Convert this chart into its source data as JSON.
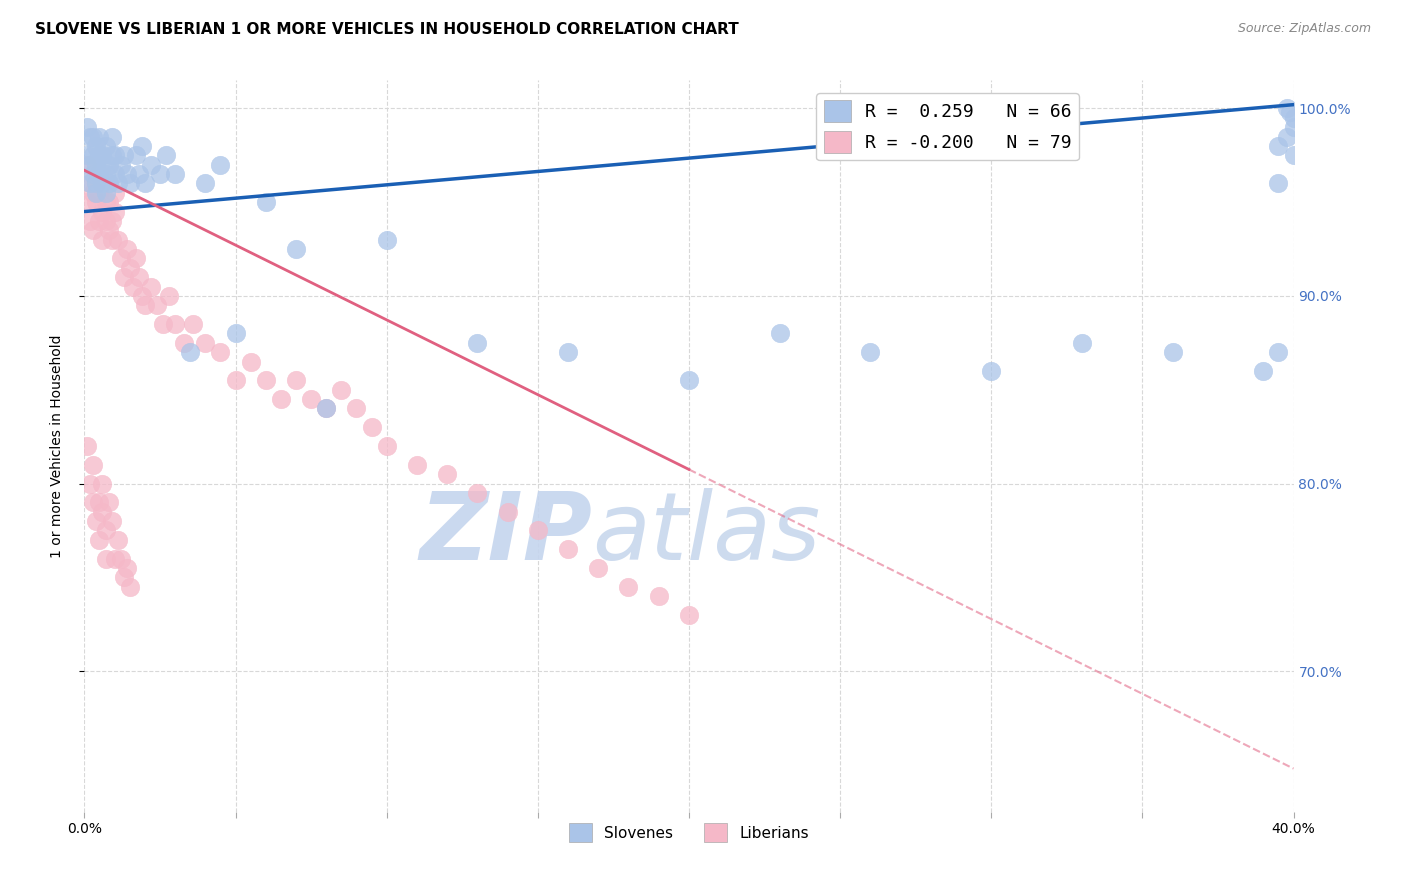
{
  "title": "SLOVENE VS LIBERIAN 1 OR MORE VEHICLES IN HOUSEHOLD CORRELATION CHART",
  "source": "Source: ZipAtlas.com",
  "ylabel": "1 or more Vehicles in Household",
  "xlabel": "",
  "xlim": [
    0.0,
    0.4
  ],
  "ylim": [
    0.625,
    1.015
  ],
  "xticks": [
    0.0,
    0.05,
    0.1,
    0.15,
    0.2,
    0.25,
    0.3,
    0.35,
    0.4
  ],
  "xticklabels": [
    "0.0%",
    "",
    "",
    "",
    "",
    "",
    "",
    "",
    "40.0%"
  ],
  "ytick_positions": [
    0.7,
    0.8,
    0.9,
    1.0
  ],
  "ytick_labels_right": [
    "70.0%",
    "80.0%",
    "90.0%",
    "100.0%"
  ],
  "slovene_color": "#aac4e8",
  "liberian_color": "#f5b8c8",
  "trend_blue": "#1a5fb4",
  "trend_pink": "#e06080",
  "grid_color": "#d8d8d8",
  "watermark_color": "#d0dff5",
  "slovene_x": [
    0.001,
    0.001,
    0.002,
    0.002,
    0.002,
    0.003,
    0.003,
    0.003,
    0.004,
    0.004,
    0.004,
    0.004,
    0.005,
    0.005,
    0.005,
    0.006,
    0.006,
    0.006,
    0.007,
    0.007,
    0.007,
    0.008,
    0.008,
    0.009,
    0.009,
    0.01,
    0.01,
    0.011,
    0.012,
    0.013,
    0.014,
    0.015,
    0.017,
    0.018,
    0.019,
    0.02,
    0.022,
    0.025,
    0.027,
    0.03,
    0.035,
    0.04,
    0.045,
    0.05,
    0.06,
    0.07,
    0.08,
    0.1,
    0.13,
    0.16,
    0.2,
    0.23,
    0.26,
    0.3,
    0.33,
    0.36,
    0.39,
    0.395,
    0.395,
    0.4,
    0.395,
    0.398,
    0.4,
    0.4,
    0.398,
    0.399
  ],
  "slovene_y": [
    0.975,
    0.99,
    0.97,
    0.985,
    0.96,
    0.975,
    0.965,
    0.985,
    0.97,
    0.96,
    0.98,
    0.955,
    0.975,
    0.965,
    0.985,
    0.97,
    0.96,
    0.975,
    0.965,
    0.98,
    0.955,
    0.97,
    0.96,
    0.975,
    0.985,
    0.965,
    0.975,
    0.96,
    0.97,
    0.975,
    0.965,
    0.96,
    0.975,
    0.965,
    0.98,
    0.96,
    0.97,
    0.965,
    0.975,
    0.965,
    0.87,
    0.96,
    0.97,
    0.88,
    0.95,
    0.925,
    0.84,
    0.93,
    0.875,
    0.87,
    0.855,
    0.88,
    0.87,
    0.86,
    0.875,
    0.87,
    0.86,
    0.87,
    0.96,
    0.975,
    0.98,
    0.985,
    0.99,
    0.995,
    1.0,
    0.998
  ],
  "liberian_x": [
    0.001,
    0.001,
    0.002,
    0.002,
    0.003,
    0.003,
    0.004,
    0.004,
    0.005,
    0.005,
    0.006,
    0.006,
    0.007,
    0.007,
    0.008,
    0.008,
    0.009,
    0.009,
    0.01,
    0.01,
    0.011,
    0.012,
    0.013,
    0.014,
    0.015,
    0.016,
    0.017,
    0.018,
    0.019,
    0.02,
    0.022,
    0.024,
    0.026,
    0.028,
    0.03,
    0.033,
    0.036,
    0.04,
    0.045,
    0.05,
    0.055,
    0.06,
    0.065,
    0.07,
    0.075,
    0.08,
    0.085,
    0.09,
    0.095,
    0.1,
    0.11,
    0.12,
    0.13,
    0.14,
    0.15,
    0.16,
    0.17,
    0.18,
    0.19,
    0.2,
    0.001,
    0.002,
    0.003,
    0.003,
    0.004,
    0.005,
    0.005,
    0.006,
    0.006,
    0.007,
    0.007,
    0.008,
    0.009,
    0.01,
    0.011,
    0.012,
    0.013,
    0.014,
    0.015
  ],
  "liberian_y": [
    0.97,
    0.95,
    0.96,
    0.94,
    0.955,
    0.935,
    0.95,
    0.96,
    0.94,
    0.955,
    0.945,
    0.93,
    0.95,
    0.94,
    0.935,
    0.95,
    0.94,
    0.93,
    0.945,
    0.955,
    0.93,
    0.92,
    0.91,
    0.925,
    0.915,
    0.905,
    0.92,
    0.91,
    0.9,
    0.895,
    0.905,
    0.895,
    0.885,
    0.9,
    0.885,
    0.875,
    0.885,
    0.875,
    0.87,
    0.855,
    0.865,
    0.855,
    0.845,
    0.855,
    0.845,
    0.84,
    0.85,
    0.84,
    0.83,
    0.82,
    0.81,
    0.805,
    0.795,
    0.785,
    0.775,
    0.765,
    0.755,
    0.745,
    0.74,
    0.73,
    0.82,
    0.8,
    0.81,
    0.79,
    0.78,
    0.79,
    0.77,
    0.8,
    0.785,
    0.775,
    0.76,
    0.79,
    0.78,
    0.76,
    0.77,
    0.76,
    0.75,
    0.755,
    0.745
  ]
}
